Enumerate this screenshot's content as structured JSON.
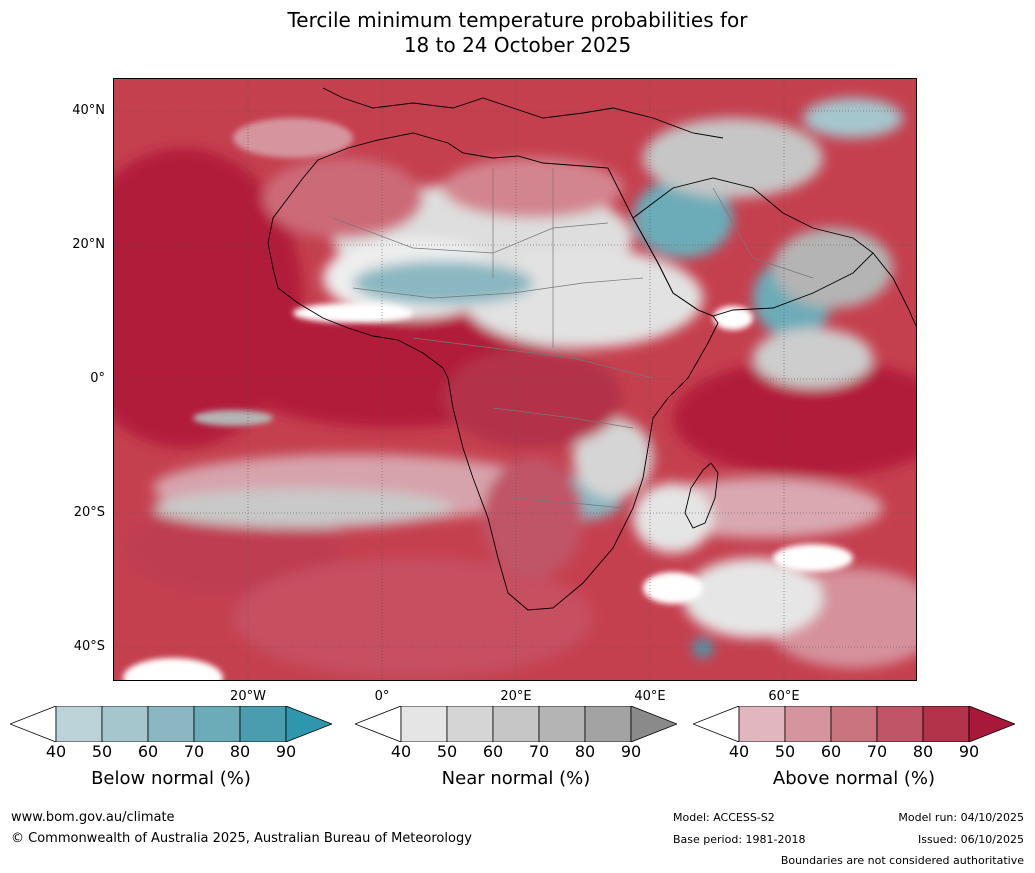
{
  "title": {
    "line1": "Tercile minimum temperature probabilities for",
    "line2": "18 to 24 October 2025"
  },
  "map": {
    "lat_labels": [
      "40°N",
      "20°N",
      "0°",
      "20°S",
      "40°S"
    ],
    "lon_labels": [
      "20°W",
      "0°",
      "20°E",
      "40°E",
      "60°E"
    ]
  },
  "colorbars": [
    {
      "title": "Below normal (%)",
      "ticks": [
        "40",
        "50",
        "60",
        "70",
        "80",
        "90"
      ],
      "colors": [
        "#ffffff",
        "#bdd3da",
        "#a6c6cd",
        "#8ab7c1",
        "#6cacb8",
        "#4a9caf",
        "#2f97ad"
      ]
    },
    {
      "title": "Near normal (%)",
      "ticks": [
        "40",
        "50",
        "60",
        "70",
        "80",
        "90"
      ],
      "colors": [
        "#ffffff",
        "#e5e5e5",
        "#d5d5d5",
        "#c6c6c6",
        "#b4b4b4",
        "#a3a3a3",
        "#8a8a8a"
      ]
    },
    {
      "title": "Above normal (%)",
      "ticks": [
        "40",
        "50",
        "60",
        "70",
        "80",
        "90"
      ],
      "colors": [
        "#ffffff",
        "#e2b6be",
        "#d5959f",
        "#ca7480",
        "#c05568",
        "#b3334a",
        "#a8183a"
      ]
    }
  ],
  "footer": {
    "website": "www.bom.gov.au/climate",
    "copyright": "© Commonwealth of Australia 2025, Australian Bureau of Meteorology",
    "model": "Model: ACCESS-S2",
    "base_period": "Base period: 1981-2018",
    "model_run": "Model run: 04/10/2025",
    "issued": "Issued: 06/10/2025",
    "disclaimer": "Boundaries are not considered authoritative"
  }
}
